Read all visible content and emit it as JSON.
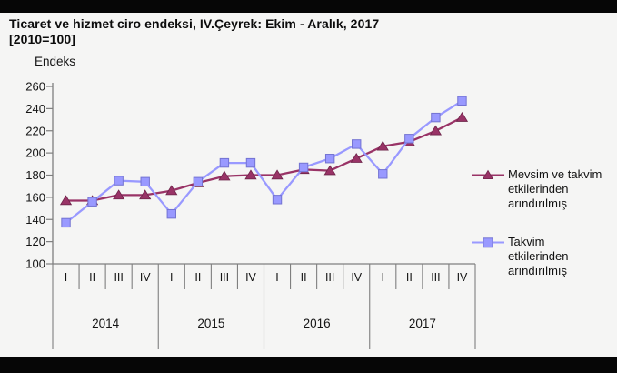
{
  "header": {
    "title_line1": "Ticaret ve hizmet ciro endeksi, IV.Çeyrek: Ekim - Aralık, 2017",
    "title_line2": "[2010=100]"
  },
  "legend": {
    "entries": [
      {
        "name": "Mevsim ve takvim etkilerinden arındırılmış",
        "line1": "Mevsim ve takvim",
        "line2": "etkilerinden",
        "line3": "arındırılmış",
        "marker": "triangle",
        "color": "#993366"
      },
      {
        "name": "Takvim etkilerinden arındırılmış",
        "line1": "Takvim",
        "line2": "etkilerinden",
        "line3": "arındırılmış",
        "marker": "square",
        "color": "#9999FF"
      }
    ]
  },
  "chart_data": {
    "type": "line",
    "title": "Ticaret ve hizmet ciro endeksi, IV.Çeyrek: Ekim - Aralık, 2017 [2010=100]",
    "ylabel": "Endeks",
    "ylim": [
      100,
      260
    ],
    "yticks": [
      260,
      240,
      220,
      200,
      180,
      160,
      140,
      120,
      100
    ],
    "ytick_step": 20,
    "grid": false,
    "legend_position": "right",
    "x_quarters": [
      "I",
      "II",
      "III",
      "IV",
      "I",
      "II",
      "III",
      "IV",
      "I",
      "II",
      "III",
      "IV",
      "I",
      "II",
      "III",
      "IV"
    ],
    "x_years": [
      "2014",
      "2015",
      "2016",
      "2017"
    ],
    "series": [
      {
        "name": "Mevsim ve takvim etkilerinden arındırılmış",
        "marker": "triangle",
        "color": "#993366",
        "values": [
          157,
          157,
          162,
          162,
          166,
          173,
          179,
          180,
          180,
          185,
          184,
          195,
          206,
          210,
          220,
          232
        ]
      },
      {
        "name": "Takvim etkilerinden arındırılmış",
        "marker": "square",
        "color": "#9999FF",
        "values": [
          137,
          156,
          175,
          174,
          145,
          174,
          191,
          191,
          158,
          187,
          195,
          208,
          181,
          213,
          232,
          247
        ]
      }
    ]
  },
  "colors": {
    "axis": "#7f7f7f",
    "text": "#141414",
    "background": "#f5f5f4",
    "letterbox": "#060606",
    "series1_line": "#993366",
    "series1_edge": "#6d2449",
    "series2_line": "#9999FF",
    "series2_edge": "#7373d2"
  }
}
